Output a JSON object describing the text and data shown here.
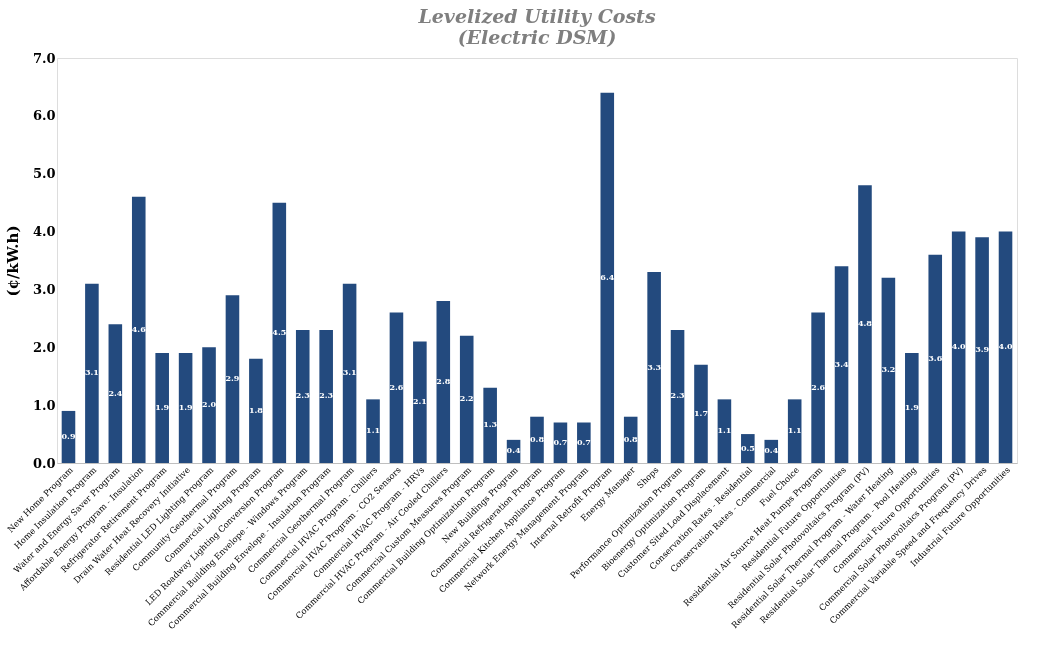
{
  "chart_data": {
    "type": "bar",
    "title": [
      "Levelized Utility Costs",
      "(Electric DSM)"
    ],
    "ylabel": "(¢/kW.h)",
    "categories": [
      "New Home Program",
      "Home Insulation Program",
      "Water and Energy Saver Program",
      "Affordable Energy Program - Insulation",
      "Refrigerator Retirement Program",
      "Drain Water Heat Recovery Initiative",
      "Residential LED Lighting Program",
      "Community Geothermal Program",
      "Commercial Lighting Program",
      "LED Roadway Lighting Conversion Program",
      "Commercial Building Envelope - Windows Program",
      "Commercial Building Envelope - Insulation Program",
      "Commercial Geothermal Program",
      "Commercial HVAC Program - Chillers",
      "Commercial HVAC Program - CO2 Sensors",
      "Commercial HVAC Program - HRVs",
      "Commercial HVAC Program - Air Cooled Chillers",
      "Commercial Custom Measures Program",
      "Commercial Building Optimization Program",
      "New Buildings Program",
      "Commercial Refrigeration Program",
      "Commercial Kitchen Appliance Program",
      "Network Energy Management Program",
      "Internal Retrofit Program",
      "Energy Manager",
      "Shops",
      "Performance Optimization Program",
      "Bioenergy Optimization Program",
      "Customer Sited Load Displacement",
      "Conservation Rates - Residential",
      "Conservation Rates - Commercial",
      "Fuel Choice",
      "Residential Air Source Heat Pumps Program",
      "Residential Future Opportunities",
      "Residential Solar Photovoltaics Program (PV)",
      "Residential Solar Thermal Program - Water Heating",
      "Residential Solar Thermal Program - Pool Heating",
      "Commercial Future Opportunities",
      "Commercial Solar Photovoltaics Program (PV)",
      "Commercial Variable Speed and Frequency Drives",
      "Industrial Future Opportunities"
    ],
    "values": [
      0.9,
      3.1,
      2.4,
      4.6,
      1.9,
      1.9,
      2.0,
      2.9,
      1.8,
      4.5,
      2.3,
      2.3,
      3.1,
      1.1,
      2.6,
      2.1,
      2.8,
      2.2,
      1.3,
      0.4,
      0.8,
      0.7,
      0.7,
      6.4,
      0.8,
      3.3,
      2.3,
      1.7,
      1.1,
      0.5,
      0.4,
      1.1,
      2.6,
      3.4,
      4.8,
      3.2,
      1.9,
      3.6,
      4.0,
      3.9,
      4.0
    ],
    "value_labels": [
      "0.9",
      "3.1",
      "2.4",
      "4.6",
      "1.9",
      "1.9",
      "2.0",
      "2.9",
      "1.8",
      "4.5",
      "2.3",
      "2.3",
      "3.1",
      "1.1",
      "2.6",
      "2.1",
      "2.8",
      "2.2",
      "1.3",
      "0.4",
      "0.8",
      "0.7",
      "0.7",
      "6.4",
      "0.8",
      "3.3",
      "2.3",
      "1.7",
      "1.1",
      "0.5",
      "0.4",
      "1.1",
      "2.6",
      "3.4",
      "4.8",
      "3.2",
      "1.9",
      "3.6",
      "4.0",
      "3.9",
      "4.0"
    ],
    "color": "#234a7e",
    "grid": false,
    "ylim": [
      0,
      7
    ],
    "yticks": [
      {
        "value": 0,
        "label": "0.0"
      },
      {
        "value": 1,
        "label": "1.0"
      },
      {
        "value": 2,
        "label": "2.0"
      },
      {
        "value": 3,
        "label": "3.0"
      },
      {
        "value": 4,
        "label": "4.0"
      },
      {
        "value": 5,
        "label": "5.0"
      },
      {
        "value": 6,
        "label": "6.0"
      },
      {
        "value": 7,
        "label": "7.0"
      }
    ]
  }
}
